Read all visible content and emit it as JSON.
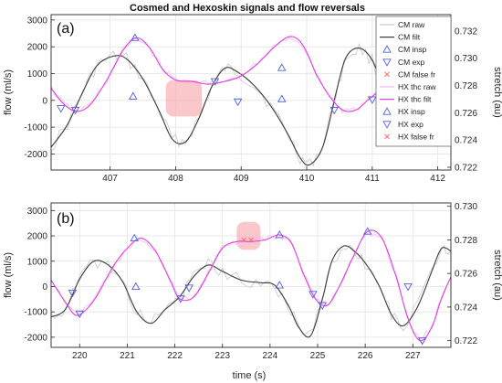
{
  "colors": {
    "cm_raw": "#c9c9c9",
    "cm_filt": "#3a3a3a",
    "cm_marker": "#4f5ee0",
    "hx_raw": "#f2b9f2",
    "hx_filt": "#e040e0",
    "false_fr": "#ff6a6a",
    "highlight": "#f8b4b8",
    "grid": "#e3e3e3",
    "axis": "#262626"
  },
  "chart_data": {
    "type": "line",
    "title": "Cosmed and Hexoskin signals and flow reversals",
    "xlabel": "time (s)",
    "legend": {
      "placement": "top-right",
      "entries": [
        {
          "label": "CM raw",
          "marker": "line",
          "color_key": "cm_raw"
        },
        {
          "label": "CM filt",
          "marker": "line",
          "color_key": "cm_filt"
        },
        {
          "label": "CM insp",
          "marker": "triangle-up",
          "color_key": "cm_marker"
        },
        {
          "label": "CM exp",
          "marker": "triangle-down",
          "color_key": "cm_marker"
        },
        {
          "label": "CM false fr",
          "marker": "x",
          "color_key": "false_fr"
        },
        {
          "label": "HX thc raw",
          "marker": "line",
          "color_key": "hx_raw"
        },
        {
          "label": "HX thc filt",
          "marker": "line",
          "color_key": "hx_filt"
        },
        {
          "label": "HX insp",
          "marker": "triangle-up",
          "color_key": "cm_marker"
        },
        {
          "label": "HX exp",
          "marker": "triangle-down",
          "color_key": "cm_marker"
        },
        {
          "label": "HX false fr",
          "marker": "x",
          "color_key": "false_fr"
        }
      ]
    },
    "panels": [
      {
        "label": "(a)",
        "xlim": [
          406.1,
          412.2
        ],
        "ylim": [
          -2600,
          3200
        ],
        "y2lim": [
          0.7218,
          0.7332
        ],
        "ylabel": "flow (ml/s)",
        "y2label": "stretch (au)",
        "xticks": [
          407,
          408,
          409,
          410,
          411,
          412
        ],
        "yticks": [
          -2000,
          -1000,
          0,
          1000,
          2000,
          3000
        ],
        "y2ticks": [
          0.722,
          0.724,
          0.726,
          0.728,
          0.73,
          0.732
        ],
        "highlight": {
          "x": [
            407.85,
            408.4
          ],
          "y": [
            -600,
            750
          ]
        },
        "series": [
          {
            "name": "CM filt",
            "x": [
              406.1,
              406.35,
              406.6,
              406.8,
              407.05,
              407.25,
              407.5,
              407.75,
              407.95,
              408.15,
              408.35,
              408.55,
              408.75,
              408.95,
              409.2,
              409.45,
              409.7,
              409.9,
              410.05,
              410.25,
              410.45,
              410.6,
              410.8,
              411.0,
              411.2,
              411.4,
              411.6,
              411.8,
              412.0,
              412.2
            ],
            "y": [
              -1750,
              -900,
              400,
              1300,
              1650,
              1550,
              800,
              -400,
              -1450,
              -1550,
              -700,
              500,
              1200,
              1050,
              550,
              -200,
              -1200,
              -2150,
              -2400,
              -1700,
              300,
              1600,
              1950,
              1500,
              300,
              -500,
              -400,
              -200,
              50,
              200
            ]
          },
          {
            "name": "HX thc filt",
            "x": [
              406.1,
              406.3,
              406.5,
              406.7,
              406.95,
              407.2,
              407.4,
              407.6,
              407.8,
              408.0,
              408.25,
              408.5,
              408.75,
              409.0,
              409.25,
              409.5,
              409.75,
              409.95,
              410.15,
              410.35,
              410.55,
              410.75,
              410.95,
              411.15,
              411.35,
              411.55,
              411.75,
              411.95,
              412.2
            ],
            "y2": [
              0.7278,
              0.7266,
              0.7261,
              0.7266,
              0.7284,
              0.7306,
              0.7315,
              0.7308,
              0.7292,
              0.7284,
              0.7283,
              0.7281,
              0.7283,
              0.7287,
              0.7296,
              0.7308,
              0.7316,
              0.7309,
              0.7288,
              0.7272,
              0.7262,
              0.7262,
              0.727,
              0.7277,
              0.728,
              0.7283,
              0.7275,
              0.7255,
              0.7248
            ]
          }
        ],
        "insp_markers": [
          {
            "x": 407.38,
            "y2": 0.7315
          },
          {
            "x": 409.62,
            "y2": 0.7293
          },
          {
            "x": 407.35,
            "y": 150
          },
          {
            "x": 409.62,
            "y": 50
          },
          {
            "x": 411.85,
            "y": 200
          }
        ],
        "exp_markers": [
          {
            "x": 406.47,
            "y2": 0.7262
          },
          {
            "x": 408.6,
            "y2": 0.7283
          },
          {
            "x": 410.42,
            "y2": 0.7262
          },
          {
            "x": 412.15,
            "y2": 0.7248
          },
          {
            "x": 406.25,
            "y": -300
          },
          {
            "x": 408.95,
            "y": -50
          },
          {
            "x": 411.0,
            "y": 30
          }
        ]
      },
      {
        "label": "(b)",
        "xlim": [
          219.4,
          227.8
        ],
        "ylim": [
          -2400,
          3300
        ],
        "y2lim": [
          0.7216,
          0.7302
        ],
        "ylabel": "flow (ml/s)",
        "y2label": "stretch (au)",
        "xticks": [
          220,
          221,
          222,
          223,
          224,
          225,
          226,
          227
        ],
        "yticks": [
          -2000,
          -1000,
          0,
          1000,
          2000,
          3000
        ],
        "y2ticks": [
          0.722,
          0.724,
          0.726,
          0.728,
          0.73
        ],
        "highlight": {
          "x": [
            223.3,
            223.8
          ],
          "y": [
            1450,
            2550
          ]
        },
        "series": [
          {
            "name": "CM filt",
            "x": [
              219.4,
              219.7,
              220.0,
              220.3,
              220.6,
              220.9,
              221.2,
              221.5,
              221.8,
              222.1,
              222.4,
              222.7,
              223.0,
              223.4,
              223.8,
              224.1,
              224.4,
              224.6,
              224.85,
              225.1,
              225.3,
              225.55,
              225.8,
              226.05,
              226.3,
              226.55,
              226.8,
              227.1,
              227.4,
              227.6,
              227.8
            ],
            "y": [
              -1200,
              -900,
              300,
              1000,
              850,
              200,
              -1000,
              -1450,
              -900,
              -400,
              400,
              850,
              600,
              250,
              150,
              50,
              -800,
              -1600,
              -1950,
              -500,
              1000,
              1600,
              1350,
              800,
              0,
              -1100,
              -1550,
              -800,
              600,
              1500,
              1400
            ]
          },
          {
            "name": "HX thc filt",
            "x": [
              219.4,
              219.7,
              219.95,
              220.3,
              220.7,
              221.0,
              221.3,
              221.6,
              221.9,
              222.1,
              222.4,
              222.7,
              223.0,
              223.3,
              223.6,
              223.9,
              224.2,
              224.45,
              224.7,
              224.95,
              225.2,
              225.45,
              225.75,
              226.05,
              226.35,
              226.65,
              226.9,
              227.15,
              227.4,
              227.6,
              227.8
            ],
            "y2": [
              0.7256,
              0.7243,
              0.7235,
              0.7244,
              0.7264,
              0.7275,
              0.7281,
              0.7273,
              0.7256,
              0.7245,
              0.7246,
              0.726,
              0.7275,
              0.7279,
              0.7279,
              0.728,
              0.7283,
              0.7278,
              0.726,
              0.7245,
              0.7241,
              0.7252,
              0.727,
              0.7285,
              0.7281,
              0.7258,
              0.7233,
              0.722,
              0.7228,
              0.7245,
              0.7258
            ]
          }
        ],
        "insp_markers": [
          {
            "x": 221.15,
            "y2": 0.7281
          },
          {
            "x": 224.2,
            "y2": 0.7283
          },
          {
            "x": 226.05,
            "y2": 0.7285
          },
          {
            "x": 221.18,
            "y": 0
          },
          {
            "x": 224.2,
            "y": 50
          }
        ],
        "exp_markers": [
          {
            "x": 220.0,
            "y2": 0.7236
          },
          {
            "x": 222.12,
            "y2": 0.7245
          },
          {
            "x": 225.1,
            "y2": 0.7241
          },
          {
            "x": 227.2,
            "y2": 0.722
          },
          {
            "x": 219.85,
            "y": -250
          },
          {
            "x": 222.3,
            "y": -50
          },
          {
            "x": 224.9,
            "y": -300
          },
          {
            "x": 226.9,
            "y": 0
          }
        ],
        "false_fr_markers": [
          {
            "x": 223.45,
            "y2": 0.728
          },
          {
            "x": 223.6,
            "y2": 0.728
          }
        ]
      }
    ]
  }
}
